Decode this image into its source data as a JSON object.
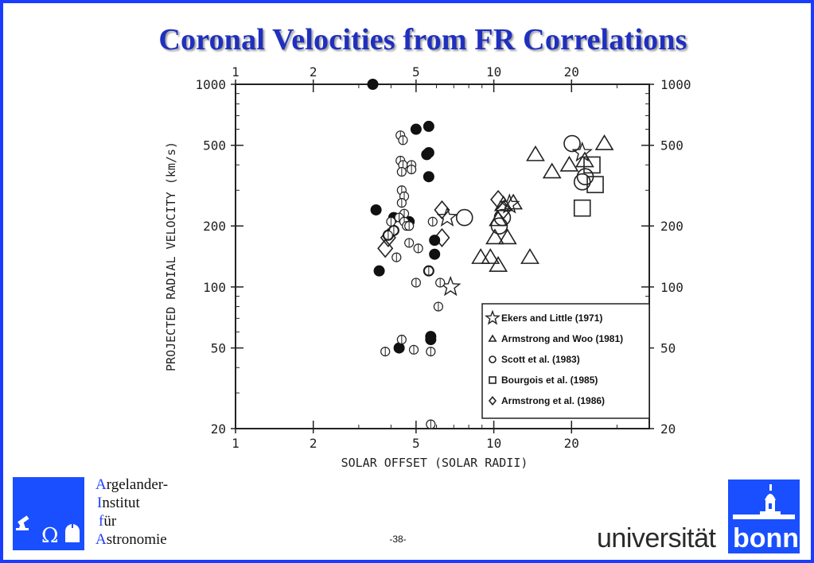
{
  "slide": {
    "title": "Coronal Velocities from FR Correlations",
    "page_number": "-38-"
  },
  "logos": {
    "institute_lines": [
      {
        "cap": "A",
        "rest": "rgelander-"
      },
      {
        "cap": "I",
        "rest": "nstitut"
      },
      {
        "cap": "f",
        "rest": "ür"
      },
      {
        "cap": "A",
        "rest": "stronomie"
      }
    ],
    "university_word": "universität",
    "university_bonn": "bonn",
    "icons": [
      "telescope-icon",
      "omega-icon",
      "observatory-icon",
      "castle-tower-icon"
    ],
    "brand_color": "#1a4fff"
  },
  "chart_data": {
    "type": "scatter",
    "title": "",
    "xlabel": "SOLAR OFFSET  (SOLAR RADII)",
    "ylabel": "PROJECTED RADIAL VELOCITY  (km/s)",
    "xscale": "log",
    "yscale": "log",
    "xlim": [
      1,
      40
    ],
    "ylim": [
      20,
      1000
    ],
    "x_ticks": [
      1,
      2,
      5,
      10,
      20
    ],
    "y_ticks": [
      20,
      50,
      100,
      200,
      500,
      1000
    ],
    "x_tick_labels": [
      "1",
      "2",
      "5",
      "10",
      "20"
    ],
    "y_tick_labels": [
      "20",
      "50",
      "100",
      "200",
      "500",
      "1000"
    ],
    "grid": false,
    "legend_position": "bottom-right",
    "series": [
      {
        "name": "Ekers and Little (1971)",
        "legend_label": "Ekers and Little (1971)",
        "marker": "star",
        "points": [
          [
            6.8,
            100
          ],
          [
            6.6,
            220
          ],
          [
            11.5,
            255
          ],
          [
            22,
            460
          ]
        ]
      },
      {
        "name": "Armstrong and Woo (1981)",
        "legend_label": "Armstrong and Woo (1981)",
        "marker": "triangle",
        "points": [
          [
            8.9,
            140
          ],
          [
            9.7,
            140
          ],
          [
            10.4,
            128
          ],
          [
            10.1,
            175
          ],
          [
            11.3,
            175
          ],
          [
            10.4,
            215
          ],
          [
            10.9,
            255
          ],
          [
            11.9,
            260
          ],
          [
            13.8,
            140
          ],
          [
            14.5,
            450
          ],
          [
            16.8,
            370
          ],
          [
            19.6,
            400
          ],
          [
            26.8,
            510
          ],
          [
            22.5,
            420
          ]
        ]
      },
      {
        "name": "Scott et al. (1983)",
        "legend_label": "Scott et al. (1983)",
        "marker": "circle",
        "points": [
          [
            7.7,
            220
          ],
          [
            10.5,
            200
          ],
          [
            20.1,
            510
          ],
          [
            22,
            330
          ],
          [
            22.6,
            350
          ],
          [
            10.8,
            220
          ]
        ]
      },
      {
        "name": "Bourgois et al. (1985)",
        "legend_label": "Bourgois et al. (1985)",
        "marker": "square",
        "points": [
          [
            22,
            245
          ],
          [
            24,
            400
          ],
          [
            24.7,
            320
          ]
        ]
      },
      {
        "name": "Armstrong et al. (1986)",
        "legend_label": "Armstrong et al. (1986)",
        "marker": "diamond",
        "points": [
          [
            3.8,
            155
          ],
          [
            3.9,
            175
          ],
          [
            6.3,
            175
          ],
          [
            6.3,
            240
          ],
          [
            10.4,
            270
          ],
          [
            10.9,
            240
          ]
        ]
      },
      {
        "name": "filled circles",
        "marker": "filled-circle",
        "points": [
          [
            3.4,
            1000
          ],
          [
            3.5,
            240
          ],
          [
            3.6,
            120
          ],
          [
            3.9,
            180
          ],
          [
            4.1,
            220
          ],
          [
            5.0,
            600
          ],
          [
            5.6,
            620
          ],
          [
            5.5,
            450
          ],
          [
            5.6,
            460
          ],
          [
            5.6,
            350
          ],
          [
            5.9,
            170
          ],
          [
            5.9,
            145
          ],
          [
            5.6,
            120
          ],
          [
            5.7,
            57
          ],
          [
            5.7,
            55
          ],
          [
            4.3,
            50
          ],
          [
            4.1,
            190
          ],
          [
            4.7,
            210
          ]
        ]
      },
      {
        "name": "small crossed circles",
        "marker": "crossed-circle",
        "points": [
          [
            4.35,
            560
          ],
          [
            4.45,
            530
          ],
          [
            4.35,
            420
          ],
          [
            4.45,
            400
          ],
          [
            4.8,
            400
          ],
          [
            4.8,
            380
          ],
          [
            4.4,
            370
          ],
          [
            4.4,
            300
          ],
          [
            4.5,
            280
          ],
          [
            4.4,
            260
          ],
          [
            4.5,
            230
          ],
          [
            4.3,
            220
          ],
          [
            4.5,
            210
          ],
          [
            4.6,
            200
          ],
          [
            4.7,
            200
          ],
          [
            4.0,
            210
          ],
          [
            4.1,
            190
          ],
          [
            3.9,
            180
          ],
          [
            4.2,
            140
          ],
          [
            4.7,
            165
          ],
          [
            5.1,
            155
          ],
          [
            5.8,
            210
          ],
          [
            5.6,
            120
          ],
          [
            6.2,
            105
          ],
          [
            5.0,
            105
          ],
          [
            6.1,
            80
          ],
          [
            4.4,
            55
          ],
          [
            3.8,
            48
          ],
          [
            4.9,
            49
          ],
          [
            5.7,
            48
          ],
          [
            5.7,
            21
          ]
        ]
      }
    ]
  }
}
